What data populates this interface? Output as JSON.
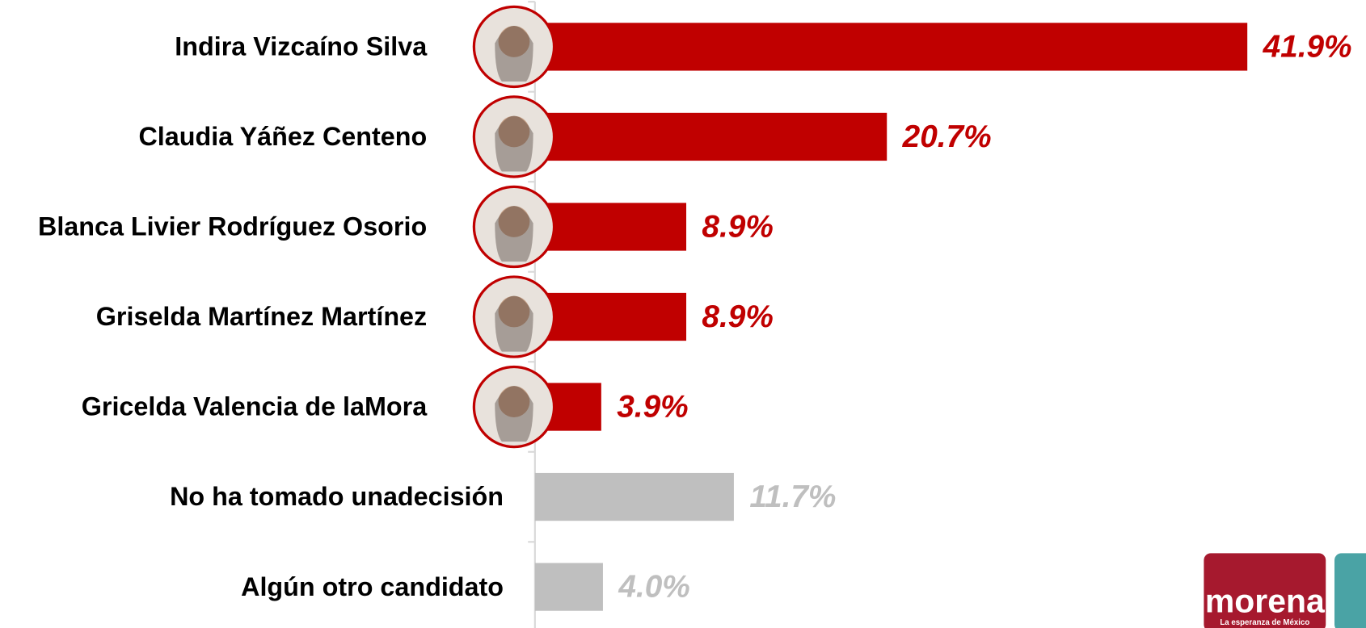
{
  "chart_data": {
    "type": "bar",
    "orientation": "horizontal",
    "categories": [
      "Indira Vizcaíno Silva",
      "Claudia Yáñez Centeno",
      "Blanca Livier Rodríguez Osorio",
      "Griselda Martínez Martínez",
      "Gricelda Valencia de laMora",
      "No ha tomado unadecisión",
      "Algún otro candidato"
    ],
    "values": [
      41.9,
      20.7,
      8.9,
      8.9,
      3.9,
      11.7,
      4.0
    ],
    "value_labels": [
      "41.9%",
      "20.7%",
      "8.9%",
      "8.9%",
      "3.9%",
      "11.7%",
      "4.0%"
    ],
    "colors": [
      "#c00000",
      "#c00000",
      "#c00000",
      "#c00000",
      "#c00000",
      "#bfbfbf",
      "#bfbfbf"
    ],
    "xlim": [
      0,
      48
    ]
  },
  "logo": {
    "name": "morena",
    "tagline": "La esperanza de México"
  }
}
